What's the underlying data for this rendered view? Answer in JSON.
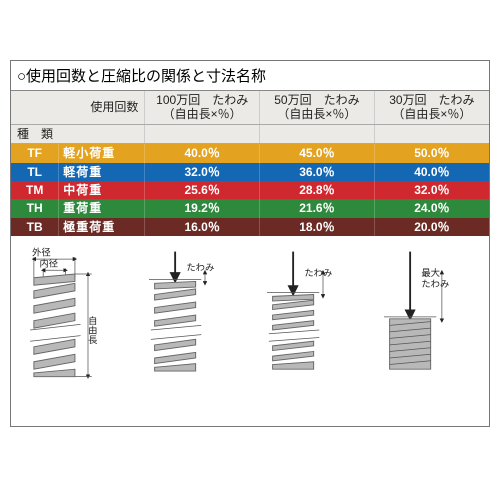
{
  "title": "○使用回数と圧縮比の関係と寸法名称",
  "header": {
    "col1_l1": "",
    "col1_l2": "種　類",
    "col2_l0": "使用回数",
    "c100_l1": "100万回　たわみ",
    "c100_l2": "（自由長×％）",
    "c50_l1": "50万回　たわみ",
    "c50_l2": "（自由長×％）",
    "c30_l1": "30万回　たわみ",
    "c30_l2": "（自由長×％）"
  },
  "rows": [
    {
      "code": "TF",
      "type": "軽小荷重",
      "v100": "40.0％",
      "v50": "45.0％",
      "v30": "50.0％",
      "bg": "#e3a21f"
    },
    {
      "code": "TL",
      "type": "軽荷重",
      "v100": "32.0％",
      "v50": "36.0％",
      "v30": "40.0％",
      "bg": "#1467b3"
    },
    {
      "code": "TM",
      "type": "中荷重",
      "v100": "25.6％",
      "v50": "28.8％",
      "v30": "32.0％",
      "bg": "#d0282f"
    },
    {
      "code": "TH",
      "type": "重荷重",
      "v100": "19.2％",
      "v50": "21.6％",
      "v30": "24.0％",
      "bg": "#2d8a3d"
    },
    {
      "code": "TB",
      "type": "極重荷重",
      "v100": "16.0％",
      "v50": "18.0％",
      "v30": "20.0％",
      "bg": "#6b2a24"
    }
  ],
  "labels": {
    "outer_d": "外径",
    "inner_d": "内径",
    "free_len": "自由長",
    "defl": "たわみ",
    "max_defl": "最大たわみ"
  },
  "diagram_colors": {
    "coil_fill": "#b8b8b8",
    "coil_stroke": "#666666",
    "line": "#555555",
    "arrow": "#222222",
    "text": "#222222"
  }
}
